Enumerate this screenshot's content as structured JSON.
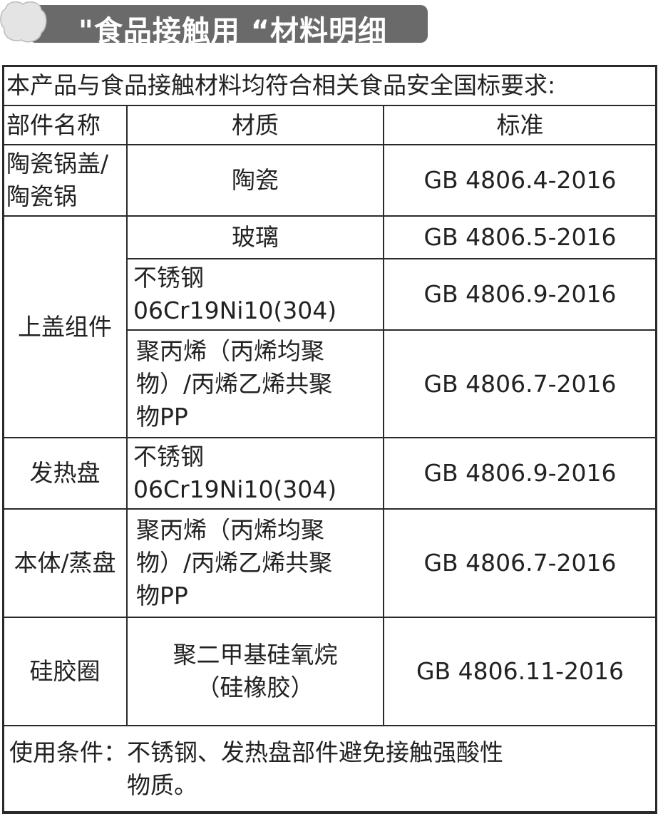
{
  "banner": {
    "title": "\"食品接触用 “材料明细",
    "logo_icon": "cloud-badge-icon"
  },
  "table": {
    "caption": "本产品与食品接触材料均符合相关食品安全国标要求:",
    "headers": [
      "部件名称",
      "材质",
      "标准"
    ],
    "rows": [
      {
        "part": "陶瓷锅盖/\n陶瓷锅",
        "material": "陶瓷",
        "standard": "GB 4806.4-2016"
      },
      {
        "part": "上盖组件",
        "material": "玻璃",
        "standard": "GB 4806.5-2016"
      },
      {
        "part": "",
        "material": "不锈钢\n06Cr19Ni10(304)",
        "standard": "GB 4806.9-2016"
      },
      {
        "part": "",
        "material": "聚丙烯（丙烯均聚\n物）/丙烯乙烯共聚\n物PP",
        "standard": "GB 4806.7-2016"
      },
      {
        "part": "发热盘",
        "material": "不锈钢\n06Cr19Ni10(304)",
        "standard": "GB 4806.9-2016"
      },
      {
        "part": "本体/蒸盘",
        "material": "聚丙烯（丙烯均聚\n物）/丙烯乙烯共聚\n物PP",
        "standard": "GB 4806.7-2016"
      },
      {
        "part": "硅胶圈",
        "material": "聚二甲基硅氧烷\n（硅橡胶）",
        "standard": "GB 4806.11-2016"
      }
    ],
    "footer": "使用条件：不锈钢、发热盘部件避免接触强酸性\n　　　　　物质。"
  }
}
